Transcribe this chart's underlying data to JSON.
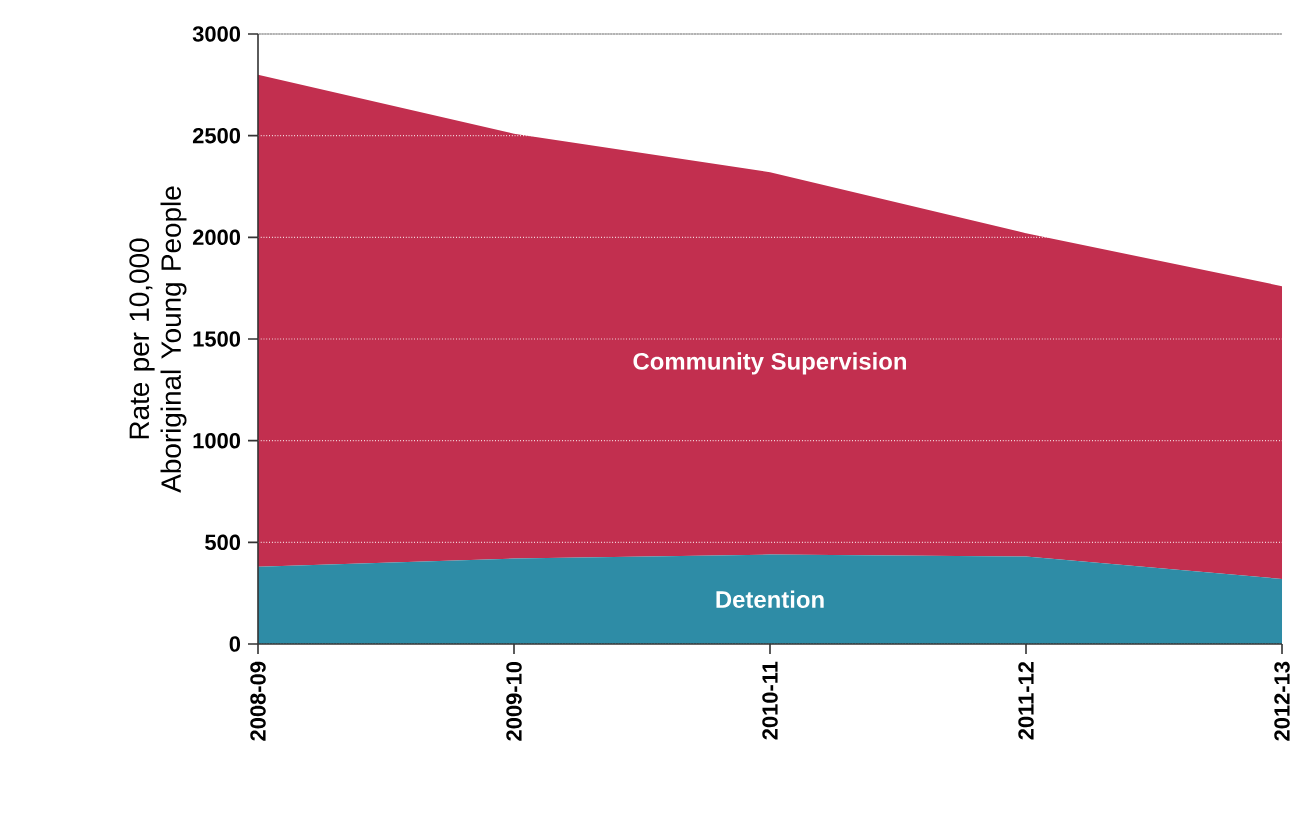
{
  "chart_data": {
    "type": "area",
    "stacked": true,
    "ylabel": "Rate per 10,000 Aboriginal Young People",
    "categories": [
      "2008-09",
      "2009-10",
      "2010-11",
      "2011-12",
      "2012-13"
    ],
    "series": [
      {
        "name": "Detention",
        "color": "#2e8ca6",
        "values": [
          380,
          420,
          440,
          430,
          320
        ]
      },
      {
        "name": "Community Supervision",
        "color": "#c22f4f",
        "values": [
          2420,
          2090,
          1880,
          1590,
          1440
        ]
      }
    ],
    "ylim": [
      0,
      3000
    ],
    "yticks": [
      0,
      500,
      1000,
      1500,
      2000,
      2500,
      3000
    ],
    "grid": "y"
  }
}
